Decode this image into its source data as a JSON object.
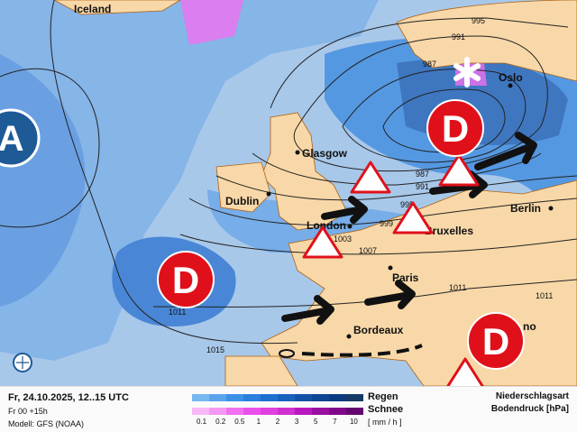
{
  "map": {
    "cities": [
      {
        "name": "Iceland"
      },
      {
        "name": "Oslo"
      },
      {
        "name": "Glasgow"
      },
      {
        "name": "Dublin"
      },
      {
        "name": "London"
      },
      {
        "name": "Bruxelles"
      },
      {
        "name": "Berlin"
      },
      {
        "name": "Paris"
      },
      {
        "name": "Bordeaux"
      },
      {
        "name": "no"
      }
    ],
    "isobars": [
      "995",
      "991",
      "987",
      "987",
      "991",
      "995",
      "999",
      "1003",
      "1007",
      "1011",
      "1011",
      "1011",
      "1015"
    ],
    "pressure_systems": [
      {
        "label": "A",
        "type": "high",
        "color": "#1e5a96"
      },
      {
        "label": "D",
        "type": "low",
        "color": "#e0101a"
      },
      {
        "label": "D",
        "type": "low",
        "color": "#e0101a"
      },
      {
        "label": "D",
        "type": "low",
        "color": "#e0101a"
      }
    ],
    "icons": [
      "snow-icon",
      "wind-warning-icon",
      "wind-arrow-icon",
      "cold-front",
      "globe-icon"
    ],
    "colors": {
      "sea": "#a8c8ea",
      "land": "#f8d8a8",
      "rain": "#2f78d8",
      "snow": "#f070f0",
      "low": "#e0101a",
      "high": "#1e5a96"
    }
  },
  "legend": {
    "date": "Fr, 24.10.2025, 12..15 UTC",
    "run": "Fr 00 +15h",
    "model": "Modell: GFS (NOAA)",
    "rain_label": "Regen",
    "snow_label": "Schnee",
    "unit": "[ mm / h ]",
    "ticks": [
      "0.1",
      "0.2",
      "0.5",
      "1",
      "2",
      "3",
      "5",
      "7",
      "10"
    ],
    "rain_colors": [
      "#78b8f0",
      "#5aa4ec",
      "#3c90e6",
      "#2a80de",
      "#1e70d0",
      "#1862be",
      "#1452a8",
      "#104694",
      "#0c3a80",
      "#163a66"
    ],
    "snow_colors": [
      "#f8b8f8",
      "#f498f4",
      "#f070f0",
      "#ec50ec",
      "#e040e0",
      "#d030d0",
      "#b818c0",
      "#9a10a0",
      "#800888",
      "#640870"
    ],
    "type_title": "Niederschlagsart",
    "pressure_title": "Bodendruck [hPa]"
  }
}
